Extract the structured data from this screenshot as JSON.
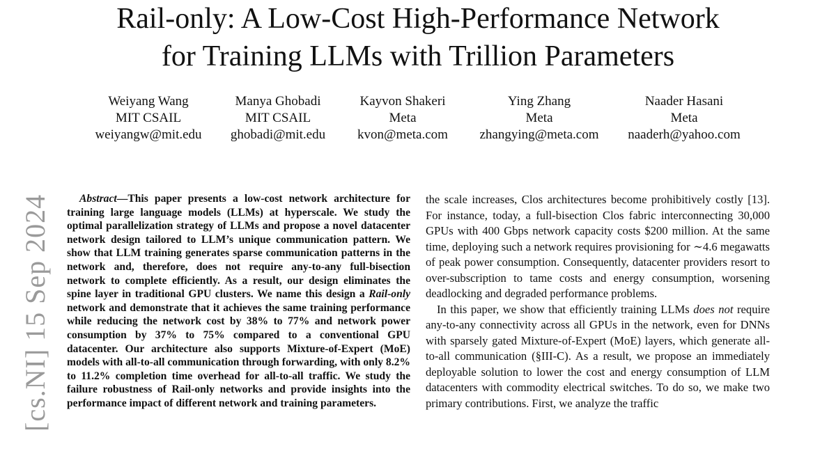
{
  "paper": {
    "title_line1": "Rail-only: A Low-Cost High-Performance Network",
    "title_line2": "for Training LLMs with Trillion Parameters",
    "authors": [
      {
        "name": "Weiyang Wang",
        "affiliation": "MIT CSAIL",
        "email": "weiyangw@mit.edu"
      },
      {
        "name": "Manya Ghobadi",
        "affiliation": "MIT CSAIL",
        "email": "ghobadi@mit.edu"
      },
      {
        "name": "Kayvon Shakeri",
        "affiliation": "Meta",
        "email": "kvon@meta.com"
      },
      {
        "name": "Ying Zhang",
        "affiliation": "Meta",
        "email": "zhangying@meta.com"
      },
      {
        "name": "Naader Hasani",
        "affiliation": "Meta",
        "email": "naaderh@yahoo.com"
      }
    ],
    "arxiv_stamp": "[cs.NI]  15 Sep 2024",
    "abstract": {
      "lead": "Abstract",
      "dash": "—",
      "part1": "This paper presents a low-cost network architecture for training large language models (LLMs) at hyperscale. We study the optimal parallelization strategy of LLMs and propose a novel datacenter network design tailored to LLM’s unique communication pattern. We show that LLM training generates sparse communication patterns in the network and, therefore, does not require any-to-any full-bisection network to complete efficiently. As a result, our design eliminates the spine layer in traditional GPU clusters. We name this design a ",
      "emphasis": "Rail-only",
      "part2": " network and demonstrate that it achieves the same training performance while reducing the network cost by 38% to 77% and network power consumption by 37% to 75% compared to a conventional GPU datacenter. Our architecture also supports Mixture-of-Expert (MoE) models with all-to-all communication through forwarding, with only 8.2% to 11.2% completion time overhead for all-to-all traffic. We study the failure robustness of Rail-only networks and provide insights into the performance impact of different network and training parameters."
    },
    "body": {
      "para1": "the scale increases, Clos architectures become prohibitively costly [13]. For instance, today, a full-bisection Clos fabric interconnecting 30,000 GPUs with 400 Gbps network capacity costs $200 million. At the same time, deploying such a network requires provisioning for ∼4.6 megawatts of peak power consumption. Consequently, datacenter providers resort to over-subscription to tame costs and energy consumption, worsening deadlocking and degraded performance problems.",
      "para2_a": "In this paper, we show that efficiently training LLMs ",
      "para2_em1": "does",
      "para2_sp": " ",
      "para2_em2": "not",
      "para2_b": " require any-to-any connectivity across all GPUs in the network, even for DNNs with sparsely gated Mixture-of-Expert (MoE) layers, which generate all-to-all communication (§III-C). As a result, we propose an immediately deployable solution to lower the cost and energy consumption of LLM datacenters with commodity electrical switches. To do so, we make two primary contributions. First, we analyze the traffic"
    }
  }
}
